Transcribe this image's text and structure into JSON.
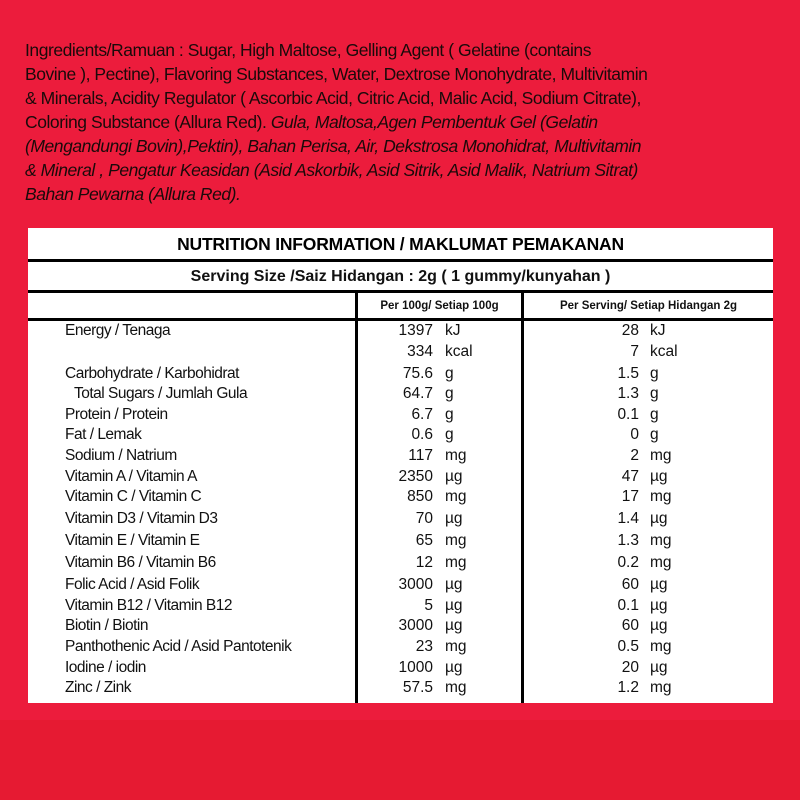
{
  "ingredients": {
    "lines_regular": [
      "Ingredients/Ramuan : Sugar, High Maltose, Gelling Agent ( Gelatine (contains",
      "Bovine ), Pectine), Flavoring Substances, Water, Dextrose Monohydrate, Multivitamin",
      "& Minerals, Acidity Regulator ( Ascorbic Acid, Citric Acid, Malic Acid, Sodium Citrate),",
      "Coloring Substance (Allura Red)."
    ],
    "italic_line4": " Gula, Maltosa,Agen Pembentuk Gel (Gelatin",
    "lines_italic": [
      "(Mengandungi Bovin),Pektin), Bahan Perisa, Air,  Dekstrosa Monohidrat, Multivitamin",
      "& Mineral , Pengatur Keasidan (Asid Askorbik, Asid Sitrik, Asid Malik, Natrium Sitrat)",
      "Bahan Pewarna (Allura Red)."
    ]
  },
  "nutrition": {
    "title": "NUTRITION INFORMATION / MAKLUMAT PEMAKANAN",
    "serving": "Serving Size /Saiz Hidangan : 2g ( 1 gummy/kunyahan )",
    "col_per100": "Per 100g/ Setiap 100g",
    "col_serving": "Per Serving/ Setiap Hidangan 2g",
    "rows": [
      {
        "label": "Energy / Tenaga",
        "v1": "1397",
        "u1": "kJ",
        "v2": "28",
        "u2": "kJ"
      },
      {
        "label": "",
        "v1": "334",
        "u1": "kcal",
        "v2": "7",
        "u2": "kcal"
      },
      {
        "label": "Carbohydrate / Karbohidrat",
        "v1": "75.6",
        "u1": "g",
        "v2": "1.5",
        "u2": "g"
      },
      {
        "label": "Total Sugars / Jumlah Gula",
        "v1": "64.7",
        "u1": "g",
        "v2": "1.3",
        "u2": "g"
      },
      {
        "label": "Protein / Protein",
        "v1": "6.7",
        "u1": "g",
        "v2": "0.1",
        "u2": "g"
      },
      {
        "label": "Fat / Lemak",
        "v1": "0.6",
        "u1": "g",
        "v2": "0",
        "u2": "g"
      },
      {
        "label": "Sodium / Natrium",
        "v1": "117",
        "u1": "mg",
        "v2": "2",
        "u2": "mg"
      },
      {
        "label": "Vitamin A / Vitamin A",
        "v1": "2350",
        "u1": "µg",
        "v2": "47",
        "u2": "µg"
      },
      {
        "label": "Vitamin C / Vitamin C",
        "v1": "850",
        "u1": "mg",
        "v2": "17",
        "u2": "mg"
      },
      {
        "label": "Vitamin D3 / Vitamin D3",
        "v1": "70",
        "u1": "µg",
        "v2": "1.4",
        "u2": "µg"
      },
      {
        "label": "Vitamin E / Vitamin E",
        "v1": "65",
        "u1": "mg",
        "v2": "1.3",
        "u2": "mg"
      },
      {
        "label": "Vitamin B6 / Vitamin B6",
        "v1": "12",
        "u1": "mg",
        "v2": "0.2",
        "u2": "mg"
      },
      {
        "label": "Folic Acid / Asid Folik",
        "v1": "3000",
        "u1": "µg",
        "v2": "60",
        "u2": "µg"
      },
      {
        "label": "Vitamin B12 / Vitamin B12",
        "v1": "5",
        "u1": "µg",
        "v2": "0.1",
        "u2": "µg"
      },
      {
        "label": "Biotin / Biotin",
        "v1": "3000",
        "u1": "µg",
        "v2": "60",
        "u2": "µg"
      },
      {
        "label": "Panthothenic Acid / Asid Pantotenik",
        "v1": "23",
        "u1": "mg",
        "v2": "0.5",
        "u2": "mg"
      },
      {
        "label": "Iodine / iodin",
        "v1": "1000",
        "u1": "µg",
        "v2": "20",
        "u2": "µg"
      },
      {
        "label": "Zinc / Zink",
        "v1": "57.5",
        "u1": "mg",
        "v2": "1.2",
        "u2": "mg"
      }
    ]
  },
  "colors": {
    "background": "#ec1c3c",
    "table": "#ffffff",
    "text": "#111111"
  }
}
